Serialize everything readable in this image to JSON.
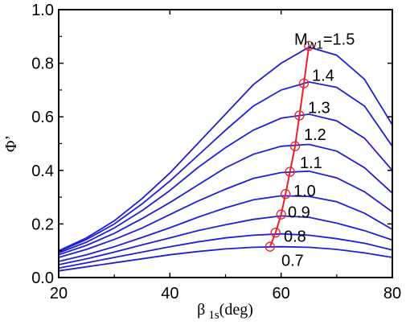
{
  "chart_data": {
    "type": "line",
    "xlabel_symbol": "β",
    "xlabel_sub": "1s",
    "xlabel_unit": "(deg)",
    "ylabel": "Φ’",
    "xlim": [
      20,
      80
    ],
    "ylim": [
      0,
      1.0
    ],
    "xticks": [
      20,
      40,
      60,
      80
    ],
    "xtick_labels": [
      "20",
      "40",
      "60",
      "80"
    ],
    "yticks": [
      0,
      0.2,
      0.4,
      0.6,
      0.8,
      1.0
    ],
    "ytick_labels": [
      "0.0",
      "0.2",
      "0.4",
      "0.6",
      "0.8",
      "1.0"
    ],
    "x": [
      20,
      25,
      30,
      35,
      40,
      45,
      50,
      55,
      60,
      65,
      70,
      75,
      80
    ],
    "series": [
      {
        "name": "0.7",
        "label": "0.7",
        "values": [
          0.025,
          0.04,
          0.055,
          0.07,
          0.085,
          0.097,
          0.107,
          0.113,
          0.115,
          0.113,
          0.105,
          0.092,
          0.075
        ]
      },
      {
        "name": "0.8",
        "label": "0.8",
        "values": [
          0.035,
          0.055,
          0.075,
          0.095,
          0.115,
          0.133,
          0.148,
          0.158,
          0.163,
          0.158,
          0.145,
          0.128,
          0.103
        ]
      },
      {
        "name": "0.9",
        "label": "0.9",
        "values": [
          0.048,
          0.07,
          0.095,
          0.122,
          0.148,
          0.175,
          0.197,
          0.217,
          0.23,
          0.225,
          0.203,
          0.175,
          0.14
        ]
      },
      {
        "name": "1.0",
        "label": "1.0",
        "values": [
          0.06,
          0.085,
          0.115,
          0.15,
          0.186,
          0.225,
          0.26,
          0.29,
          0.305,
          0.303,
          0.283,
          0.24,
          0.18
        ]
      },
      {
        "name": "1.1",
        "label": "1.1",
        "values": [
          0.075,
          0.105,
          0.142,
          0.185,
          0.235,
          0.285,
          0.33,
          0.37,
          0.392,
          0.397,
          0.372,
          0.32,
          0.245
        ]
      },
      {
        "name": "1.2",
        "label": "1.2",
        "values": [
          0.085,
          0.12,
          0.165,
          0.22,
          0.28,
          0.345,
          0.41,
          0.46,
          0.49,
          0.497,
          0.472,
          0.41,
          0.315
        ]
      },
      {
        "name": "1.3",
        "label": "1.3",
        "values": [
          0.092,
          0.132,
          0.185,
          0.25,
          0.325,
          0.41,
          0.485,
          0.55,
          0.595,
          0.61,
          0.585,
          0.52,
          0.4
        ]
      },
      {
        "name": "1.4",
        "label": "1.4",
        "values": [
          0.097,
          0.142,
          0.2,
          0.275,
          0.36,
          0.455,
          0.55,
          0.64,
          0.7,
          0.73,
          0.71,
          0.64,
          0.49
        ]
      },
      {
        "name": "1.5",
        "label": "1.5",
        "values": [
          0.1,
          0.148,
          0.212,
          0.295,
          0.39,
          0.5,
          0.61,
          0.72,
          0.8,
          0.86,
          0.83,
          0.74,
          0.57
        ]
      }
    ],
    "top_series_prefix": "M",
    "top_series_sub": "w1",
    "top_series_eq": "=",
    "optimum_line": {
      "x": [
        58.0,
        59.0,
        60.0,
        60.8,
        61.6,
        62.5,
        63.3,
        64.1,
        65.0
      ],
      "y": [
        0.115,
        0.168,
        0.235,
        0.312,
        0.395,
        0.49,
        0.605,
        0.725,
        0.865
      ]
    },
    "colors": {
      "curves": "#1f1fd6",
      "optimum": "#e8202a",
      "axes": "#000000"
    }
  }
}
